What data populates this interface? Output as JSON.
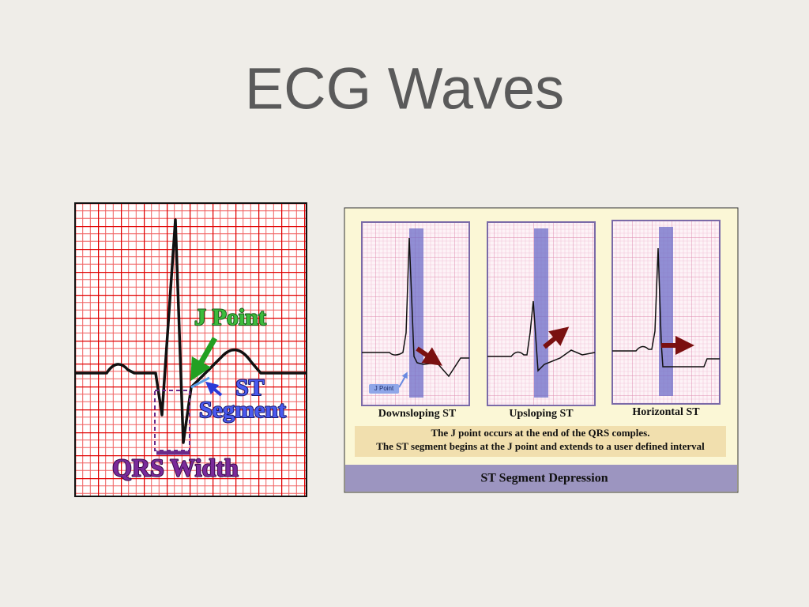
{
  "title": "ECG Waves",
  "left_figure": {
    "j_point": "J Point",
    "st": "ST",
    "segment": "Segment",
    "qrs_width": "QRS Width"
  },
  "right_figure": {
    "j_point_tag": "J Point",
    "panels": [
      "Downsloping ST",
      "Upsloping ST",
      "Horizontal ST"
    ],
    "note_lines": [
      "The J point occurs at the end of the QRS comples.",
      "The ST segment begins at the J point and extends to a user defined interval"
    ],
    "footer": "ST Segment Depression"
  }
}
